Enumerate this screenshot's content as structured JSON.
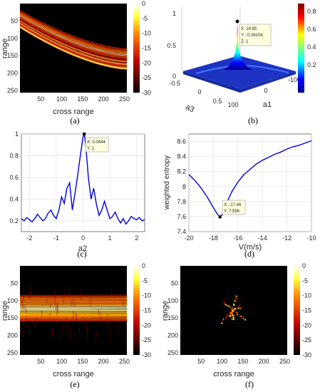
{
  "panels": {
    "a": {
      "caption": "(a)",
      "xlabel": "cross range",
      "ylabel": "range",
      "xticks": [
        "50",
        "100",
        "150",
        "200",
        "250"
      ],
      "yticks": [
        "50",
        "100",
        "150",
        "200",
        "250"
      ],
      "colorbar_ticks": [
        "0",
        "-5",
        "-10",
        "-15",
        "-20",
        "-25",
        "-30"
      ]
    },
    "b": {
      "caption": "(b)",
      "axis_a1_label": "a1",
      "axis_a3_label": "a3",
      "a1_ticks": [
        "100",
        "0",
        "-100"
      ],
      "a3_ticks": [
        "-0.5",
        "0",
        "0.5"
      ],
      "z_ticks": [
        "0",
        "0.5",
        "1"
      ],
      "colorbar_ticks": [
        "0.8",
        "0.6",
        "0.4",
        "0.2"
      ],
      "tooltip": [
        "X: 24.85",
        "Y: -0.06104",
        "Z: 1"
      ]
    },
    "c": {
      "caption": "(c)",
      "xlabel": "a2",
      "xticks": [
        "-2",
        "-1",
        "0",
        "1",
        "2"
      ],
      "yticks": [
        "1",
        "0.8",
        "0.6",
        "0.4",
        "0.2"
      ],
      "tooltip": [
        "X: 0.0444",
        "Y: 1"
      ]
    },
    "d": {
      "caption": "(d)",
      "xlabel": "V(m/s)",
      "ylabel": "weighted entropy",
      "xticks": [
        "-20",
        "-18",
        "-16",
        "-14",
        "-12",
        "-10"
      ],
      "yticks": [
        "8.6",
        "8.4",
        "8.2",
        "8",
        "7.8",
        "7.6",
        "7.4"
      ],
      "tooltip": [
        "X: -17.46",
        "Y: 7.596"
      ]
    },
    "e": {
      "caption": "(e)",
      "xlabel": "cross range",
      "ylabel": "range",
      "xticks": [
        "50",
        "100",
        "150",
        "200",
        "250"
      ],
      "yticks": [
        "50",
        "100",
        "150",
        "200",
        "250"
      ],
      "colorbar_ticks": [
        "0",
        "-5",
        "-10",
        "-15",
        "-20",
        "-25",
        "-30"
      ]
    },
    "f": {
      "caption": "(f)",
      "xlabel": "cross range",
      "ylabel": "range",
      "xticks": [
        "50",
        "100",
        "150",
        "200",
        "250"
      ],
      "yticks": [
        "50",
        "100",
        "150",
        "200",
        "250"
      ],
      "colorbar_ticks": [
        "0",
        "-5",
        "-10",
        "-15",
        "-20",
        "-25",
        "-30"
      ]
    }
  },
  "chart_data": [
    {
      "type": "heatmap",
      "panel": "a",
      "xlabel": "cross range",
      "ylabel": "range",
      "xlim": [
        0,
        256
      ],
      "ylim": [
        256,
        0
      ],
      "clim": [
        -30,
        0
      ],
      "colormap": "hot",
      "band": {
        "range_at_cross_0": [
          20,
          70
        ],
        "range_at_cross_256": [
          130,
          190
        ],
        "shape": "curved-descending"
      }
    },
    {
      "type": "surface",
      "panel": "b",
      "xlabel": "a1",
      "ylabel": "a3",
      "xlim": [
        -100,
        100
      ],
      "ylim": [
        -0.5,
        0.5
      ],
      "zlim": [
        0,
        1
      ],
      "clim": [
        0,
        1
      ],
      "colormap": "jet",
      "peak": {
        "x": 24.85,
        "y": -0.06104,
        "z": 1
      }
    },
    {
      "type": "line",
      "panel": "c",
      "xlabel": "a2",
      "xlim": [
        -2.3,
        2.3
      ],
      "ylim": [
        0.1,
        1.0
      ],
      "grid": true,
      "x": [
        -2.3,
        -2.2,
        -2.1,
        -2.0,
        -1.9,
        -1.8,
        -1.7,
        -1.6,
        -1.5,
        -1.4,
        -1.3,
        -1.2,
        -1.1,
        -1.0,
        -0.9,
        -0.8,
        -0.7,
        -0.6,
        -0.5,
        -0.4,
        -0.3,
        -0.2,
        -0.1,
        0.0,
        0.0444,
        0.1,
        0.2,
        0.3,
        0.4,
        0.5,
        0.6,
        0.7,
        0.8,
        0.9,
        1.0,
        1.1,
        1.2,
        1.3,
        1.4,
        1.5,
        1.6,
        1.7,
        1.8,
        1.9,
        2.0,
        2.1,
        2.2,
        2.3
      ],
      "y": [
        0.22,
        0.2,
        0.23,
        0.21,
        0.19,
        0.22,
        0.26,
        0.23,
        0.2,
        0.22,
        0.27,
        0.3,
        0.25,
        0.22,
        0.3,
        0.42,
        0.36,
        0.5,
        0.55,
        0.3,
        0.45,
        0.62,
        0.8,
        0.97,
        1.0,
        0.9,
        0.6,
        0.4,
        0.5,
        0.35,
        0.25,
        0.3,
        0.38,
        0.3,
        0.22,
        0.24,
        0.28,
        0.22,
        0.18,
        0.22,
        0.17,
        0.2,
        0.24,
        0.22,
        0.21,
        0.23,
        0.2,
        0.21
      ],
      "marker": {
        "x": 0.0444,
        "y": 1
      }
    },
    {
      "type": "line",
      "panel": "d",
      "xlabel": "V(m/s)",
      "ylabel": "weighted entropy",
      "xlim": [
        -20,
        -10
      ],
      "ylim": [
        7.4,
        8.7
      ],
      "grid": true,
      "x": [
        -20,
        -19.5,
        -19,
        -18.5,
        -18,
        -17.7,
        -17.46,
        -17.2,
        -17,
        -16.5,
        -16,
        -15.5,
        -15,
        -14.5,
        -14,
        -13.5,
        -13,
        -12.5,
        -12,
        -11.5,
        -11,
        -10.5,
        -10
      ],
      "y": [
        8.16,
        8.08,
        7.98,
        7.86,
        7.72,
        7.64,
        7.596,
        7.64,
        7.75,
        7.93,
        8.06,
        8.16,
        8.23,
        8.3,
        8.35,
        8.39,
        8.43,
        8.46,
        8.5,
        8.53,
        8.55,
        8.58,
        8.61
      ],
      "marker": {
        "x": -17.46,
        "y": 7.596
      }
    },
    {
      "type": "heatmap",
      "panel": "e",
      "xlabel": "cross range",
      "ylabel": "range",
      "xlim": [
        0,
        256
      ],
      "ylim": [
        256,
        0
      ],
      "clim": [
        -30,
        0
      ],
      "colormap": "hot",
      "band": {
        "range": [
          85,
          160
        ],
        "shape": "horizontal"
      }
    },
    {
      "type": "heatmap",
      "panel": "f",
      "xlabel": "cross range",
      "ylabel": "range",
      "xlim": [
        0,
        256
      ],
      "ylim": [
        256,
        0
      ],
      "clim": [
        -30,
        0
      ],
      "colormap": "hot",
      "target": {
        "center_cross": 125,
        "center_range": 128,
        "shape": "aircraft"
      }
    }
  ]
}
